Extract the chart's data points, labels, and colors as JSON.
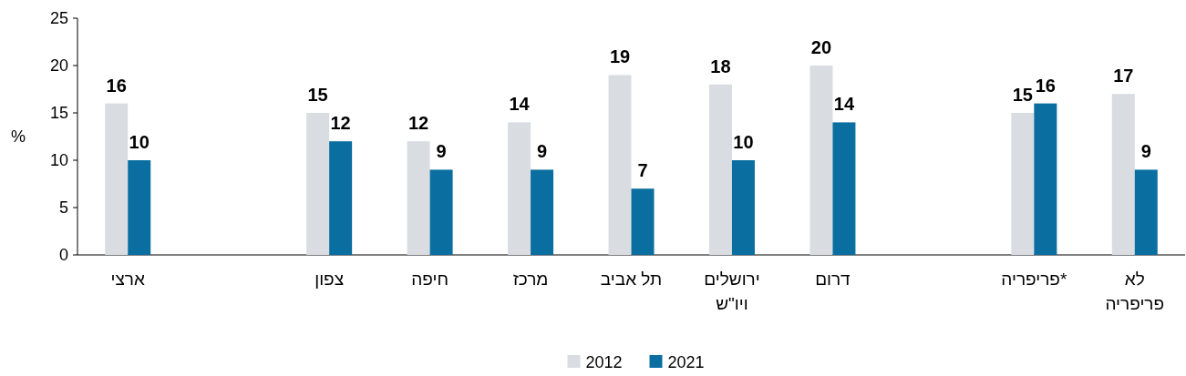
{
  "chart_data": {
    "type": "bar",
    "ylabel": "%",
    "categories": [
      "ארצי",
      null,
      "צפון",
      "חיפה",
      "מרכז",
      "תל אביב",
      "ירושלים ויו\"ש",
      "דרום",
      null,
      "פריפריה*",
      "לא פריפריה"
    ],
    "series": [
      {
        "name": "2012",
        "color": "#d9dde1",
        "values": [
          16,
          null,
          15,
          12,
          14,
          19,
          18,
          20,
          null,
          15,
          17
        ]
      },
      {
        "name": "2021",
        "color": "#0a6fa0",
        "values": [
          10,
          null,
          12,
          9,
          9,
          7,
          10,
          14,
          null,
          16,
          9
        ]
      }
    ],
    "ylim": [
      0,
      25
    ],
    "yticks": [
      0,
      5,
      10,
      15,
      20,
      25
    ],
    "data_labels": true,
    "legend": "bottom"
  }
}
